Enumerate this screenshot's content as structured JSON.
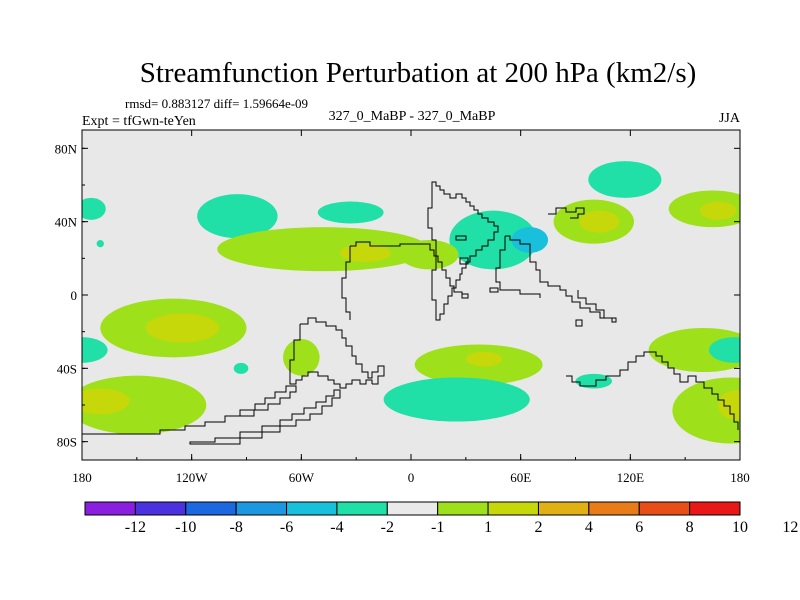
{
  "chart_data": {
    "type": "contour-map",
    "title": "Streamfunction Perturbation at 200 hPa (km2/s)",
    "stats_line": "rmsd= 0.883127 diff= 1.59664e-09",
    "left_label": "Expt = tfGwn-teYen",
    "center_label": "327_0_MaBP - 327_0_MaBP",
    "right_label": "JJA",
    "x_ticks": [
      {
        "value": -180,
        "label": "180"
      },
      {
        "value": -120,
        "label": "120W"
      },
      {
        "value": -60,
        "label": "60W"
      },
      {
        "value": 0,
        "label": "0"
      },
      {
        "value": 60,
        "label": "60E"
      },
      {
        "value": 120,
        "label": "120E"
      },
      {
        "value": 180,
        "label": "180"
      }
    ],
    "y_ticks": [
      {
        "value": 80,
        "label": "80N"
      },
      {
        "value": 40,
        "label": "40N"
      },
      {
        "value": 0,
        "label": "0"
      },
      {
        "value": -40,
        "label": "40S"
      },
      {
        "value": -80,
        "label": "80S"
      }
    ],
    "xlim": [
      -180,
      180
    ],
    "ylim": [
      -90,
      90
    ],
    "colorbar": {
      "colors": [
        "#8b1fe0",
        "#4b32e0",
        "#1c68e0",
        "#1c98e0",
        "#18c0dc",
        "#20e0a8",
        "#eaeaea",
        "#9ee01a",
        "#c6d80a",
        "#e0b014",
        "#e87c18",
        "#e84e18",
        "#e81818"
      ],
      "labels": [
        "-12",
        "-10",
        "-8",
        "-6",
        "-4",
        "-2",
        "-1",
        "1",
        "2",
        "4",
        "6",
        "8",
        "10",
        "12"
      ]
    },
    "anomalies": [
      {
        "lon": -175,
        "lat": 47,
        "rx": 8,
        "ry": 6,
        "level": -2
      },
      {
        "lon": -95,
        "lat": 43,
        "rx": 22,
        "ry": 12,
        "level": -2
      },
      {
        "lon": -33,
        "lat": 45,
        "rx": 18,
        "ry": 6,
        "level": -2
      },
      {
        "lon": 45,
        "lat": 30,
        "rx": 24,
        "ry": 16,
        "level": -2
      },
      {
        "lon": 65,
        "lat": 30,
        "rx": 10,
        "ry": 7,
        "level": -4
      },
      {
        "lon": 117,
        "lat": 63,
        "rx": 20,
        "ry": 10,
        "level": -2
      },
      {
        "lon": -48,
        "lat": 25,
        "rx": 58,
        "ry": 12,
        "level": 1
      },
      {
        "lon": -25,
        "lat": 23,
        "rx": 14,
        "ry": 5,
        "level": 2
      },
      {
        "lon": 10,
        "lat": 22,
        "rx": 16,
        "ry": 8,
        "level": 1
      },
      {
        "lon": 100,
        "lat": 40,
        "rx": 22,
        "ry": 12,
        "level": 1
      },
      {
        "lon": 103,
        "lat": 40,
        "rx": 11,
        "ry": 6,
        "level": 2
      },
      {
        "lon": 165,
        "lat": 47,
        "rx": 24,
        "ry": 10,
        "level": 1
      },
      {
        "lon": 168,
        "lat": 46,
        "rx": 10,
        "ry": 5,
        "level": 2
      },
      {
        "lon": -130,
        "lat": -18,
        "rx": 40,
        "ry": 16,
        "level": 1
      },
      {
        "lon": -125,
        "lat": -18,
        "rx": 20,
        "ry": 8,
        "level": 2
      },
      {
        "lon": -60,
        "lat": -34,
        "rx": 10,
        "ry": 10,
        "level": 1
      },
      {
        "lon": 37,
        "lat": -38,
        "rx": 35,
        "ry": 11,
        "level": 1
      },
      {
        "lon": 40,
        "lat": -35,
        "rx": 10,
        "ry": 4,
        "level": 2
      },
      {
        "lon": 160,
        "lat": -30,
        "rx": 30,
        "ry": 12,
        "level": 1
      },
      {
        "lon": 177,
        "lat": -30,
        "rx": 14,
        "ry": 7,
        "level": -2
      },
      {
        "lon": -180,
        "lat": -30,
        "rx": 14,
        "ry": 7,
        "level": -2
      },
      {
        "lon": -150,
        "lat": -60,
        "rx": 38,
        "ry": 16,
        "level": 1
      },
      {
        "lon": -170,
        "lat": -58,
        "rx": 16,
        "ry": 7,
        "level": 2
      },
      {
        "lon": 175,
        "lat": -63,
        "rx": 32,
        "ry": 18,
        "level": 1
      },
      {
        "lon": 178,
        "lat": -60,
        "rx": 10,
        "ry": 8,
        "level": 2
      },
      {
        "lon": 25,
        "lat": -57,
        "rx": 40,
        "ry": 12,
        "level": -2
      },
      {
        "lon": 100,
        "lat": -47,
        "rx": 10,
        "ry": 4,
        "level": -2
      },
      {
        "lon": -93,
        "lat": -40,
        "rx": 4,
        "ry": 3,
        "level": -2
      },
      {
        "lon": -170,
        "lat": 28,
        "rx": 2,
        "ry": 2,
        "level": -2
      }
    ]
  }
}
